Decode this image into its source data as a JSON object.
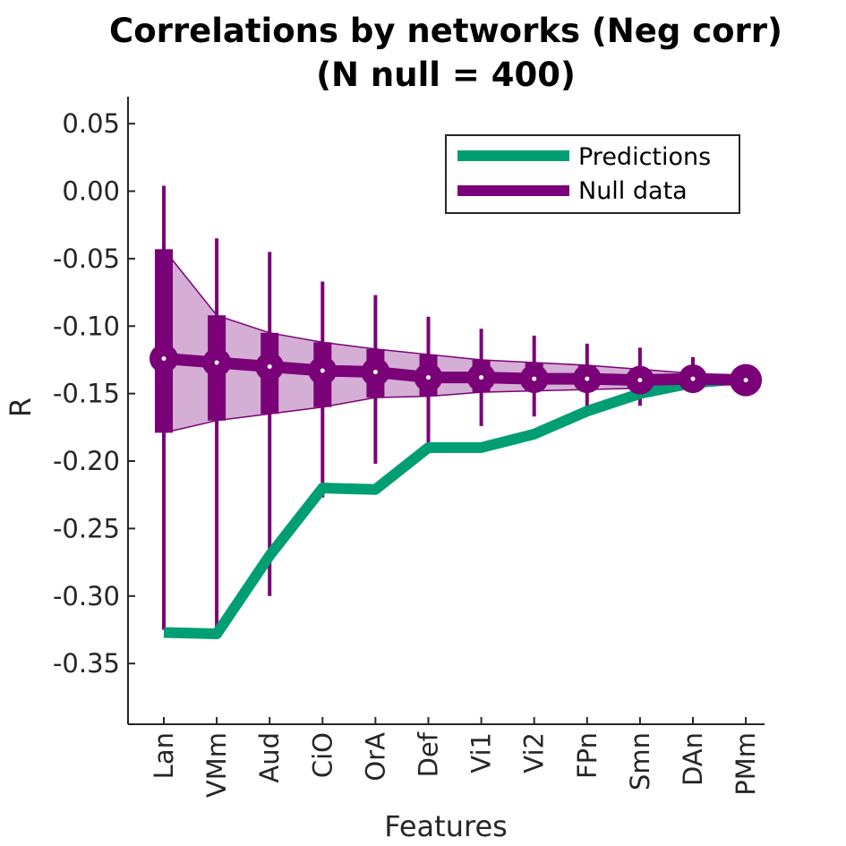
{
  "chart_data": {
    "type": "line",
    "title_line1": "Correlations by networks (Neg corr)",
    "title_line2": "(N null = 400)",
    "xlabel": "Features",
    "ylabel": "R",
    "categories": [
      "Lan",
      "VMm",
      "Aud",
      "CiO",
      "OrA",
      "Def",
      "Vi1",
      "Vi2",
      "FPn",
      "Smn",
      "DAn",
      "PMm"
    ],
    "ylim": [
      -0.395,
      0.07
    ],
    "yticks": [
      0.05,
      0.0,
      -0.05,
      -0.1,
      -0.15,
      -0.2,
      -0.25,
      -0.3,
      -0.35
    ],
    "ytick_labels": [
      "0.05",
      "0.00",
      "-0.05",
      "-0.10",
      "-0.15",
      "-0.20",
      "-0.25",
      "-0.30",
      "-0.35"
    ],
    "series": [
      {
        "name": "Predictions",
        "color": "#009e73",
        "values": [
          -0.327,
          -0.328,
          -0.27,
          -0.22,
          -0.221,
          -0.19,
          -0.19,
          -0.18,
          -0.163,
          -0.15,
          -0.142,
          -0.139
        ]
      },
      {
        "name": "Null data",
        "color": "#7a0177",
        "values": [
          -0.124,
          -0.127,
          -0.13,
          -0.133,
          -0.134,
          -0.138,
          -0.138,
          -0.139,
          -0.139,
          -0.14,
          -0.139,
          -0.14
        ],
        "whisker_low": [
          -0.325,
          -0.325,
          -0.3,
          -0.227,
          -0.202,
          -0.188,
          -0.174,
          -0.167,
          -0.163,
          -0.159,
          -0.147,
          -0.14
        ],
        "whisker_high": [
          0.004,
          -0.035,
          -0.045,
          -0.067,
          -0.077,
          -0.093,
          -0.102,
          -0.107,
          -0.113,
          -0.116,
          -0.123,
          -0.14
        ],
        "box_low": [
          -0.179,
          -0.17,
          -0.165,
          -0.16,
          -0.153,
          -0.152,
          -0.149,
          -0.148,
          -0.147,
          -0.146,
          -0.143,
          -0.14
        ],
        "box_high": [
          -0.043,
          -0.092,
          -0.105,
          -0.112,
          -0.117,
          -0.121,
          -0.125,
          -0.127,
          -0.129,
          -0.132,
          -0.135,
          -0.14
        ]
      }
    ],
    "band_color": "#d4aed4",
    "grid": false,
    "legend_position": "top-right"
  }
}
